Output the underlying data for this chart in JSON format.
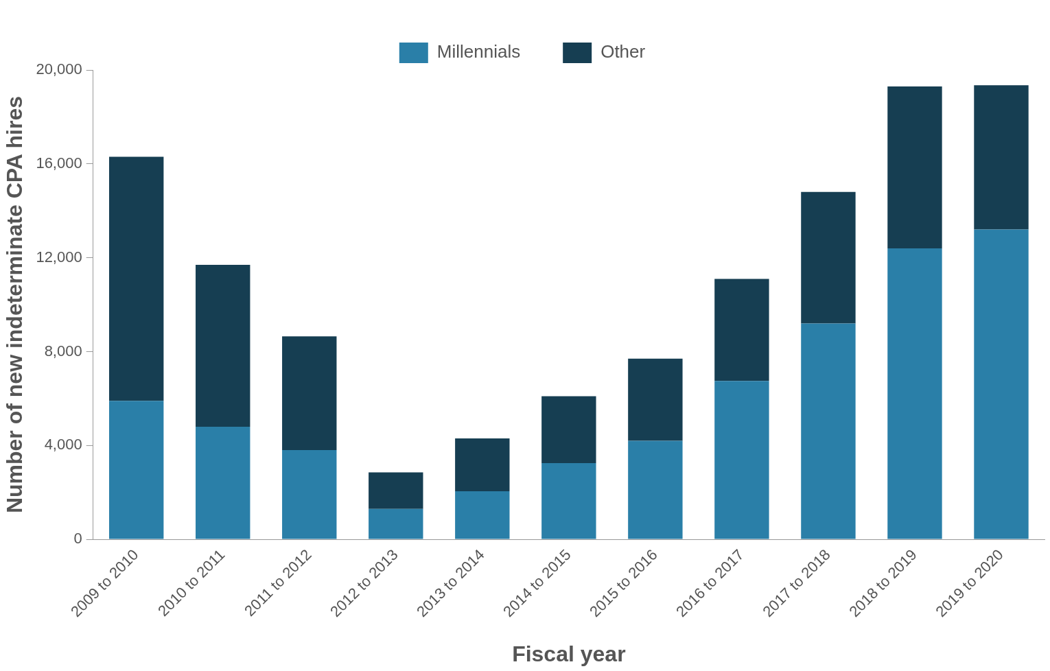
{
  "chart_data": {
    "type": "bar",
    "stacked": true,
    "xlabel": "Fiscal year",
    "ylabel": "Number of new indeterminate CPA hires",
    "categories": [
      "2009 to 2010",
      "2010 to 2011",
      "2011 to 2012",
      "2012 to 2013",
      "2013 to 2014",
      "2014 to 2015",
      "2015 to 2016",
      "2016 to 2017",
      "2017 to 2018",
      "2018 to 2019",
      "2019 to 2020"
    ],
    "series": [
      {
        "name": "Millennials",
        "color": "#2a7fa8",
        "values": [
          5900,
          4800,
          3800,
          1300,
          2050,
          3250,
          4200,
          6750,
          9200,
          12400,
          13200
        ]
      },
      {
        "name": "Other",
        "color": "#163e52",
        "values": [
          10400,
          6900,
          4850,
          1550,
          2250,
          2850,
          3500,
          4350,
          5600,
          6900,
          6150
        ]
      }
    ],
    "ylim": [
      0,
      20000
    ],
    "yticks": [
      {
        "value": 0,
        "label": "0"
      },
      {
        "value": 4000,
        "label": "4,000"
      },
      {
        "value": 8000,
        "label": "8,000"
      },
      {
        "value": 12000,
        "label": "12,000"
      },
      {
        "value": 16000,
        "label": "16,000"
      },
      {
        "value": 20000,
        "label": "20,000"
      }
    ],
    "grid": false,
    "legend": "top"
  }
}
